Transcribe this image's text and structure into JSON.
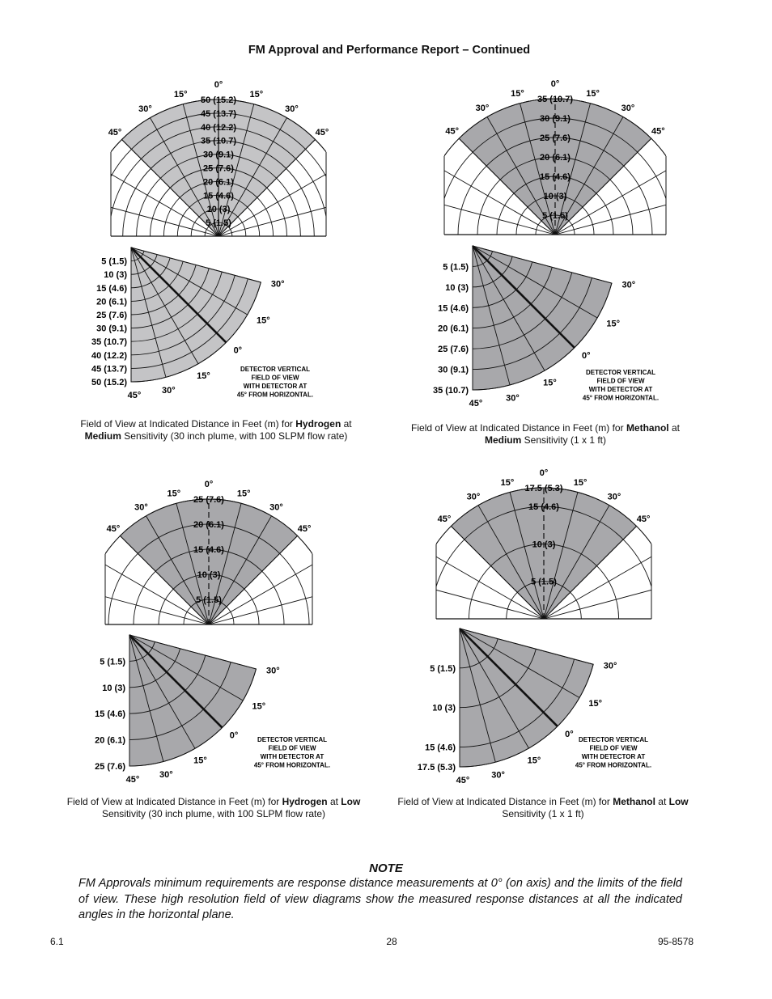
{
  "header": {
    "title": "FM Approval and Performance Report – Continued"
  },
  "diagrams": [
    {
      "id": "hydrogen-medium",
      "values": [
        5,
        10,
        15,
        20,
        25,
        30,
        35,
        40,
        45,
        50
      ],
      "distance_labels": [
        "5 (1.5)",
        "10 (3)",
        "15 (4.6)",
        "20 (6.1)",
        "25 (7.6)",
        "30 (9.1)",
        "35 (10.7)",
        "40 (12.2)",
        "45 (13.7)",
        "50 (15.2)"
      ],
      "top_angle_labels": [
        "45°",
        "30°",
        "15°",
        "0°",
        "15°",
        "30°",
        "45°"
      ],
      "side_angle_labels": [
        "30°",
        "15°",
        "0°",
        "15°",
        "30°",
        "45°"
      ],
      "side_note": [
        "DETECTOR VERTICAL",
        "FIELD OF VIEW",
        "WITH DETECTOR AT",
        "45° FROM HORIZONTAL."
      ],
      "caption": [
        {
          "text": "Field of View at Indicated Distance in Feet (m) for ",
          "bold": false
        },
        {
          "text": "Hydrogen",
          "bold": true
        },
        {
          "text": " at ",
          "bold": false
        },
        {
          "text": "Medium",
          "bold": true
        },
        {
          "text": " Sensitivity (30 inch plume, with 100 SLPM flow rate)",
          "bold": false
        }
      ],
      "shade_color": "#c4c4c6"
    },
    {
      "id": "methanol-medium",
      "values": [
        5,
        10,
        15,
        20,
        25,
        30,
        35
      ],
      "distance_labels": [
        "5 (1.5)",
        "10 (3)",
        "15 (4.6)",
        "20 (6.1)",
        "25 (7.6)",
        "30 (9.1)",
        "35 (10.7)"
      ],
      "top_angle_labels": [
        "45°",
        "30°",
        "15°",
        "0°",
        "15°",
        "30°",
        "45°"
      ],
      "side_angle_labels": [
        "30°",
        "15°",
        "0°",
        "15°",
        "30°",
        "45°"
      ],
      "side_note": [
        "DETECTOR VERTICAL",
        "FIELD OF VIEW",
        "WITH DETECTOR AT",
        "45° FROM HORIZONTAL."
      ],
      "caption": [
        {
          "text": "Field of View at Indicated Distance in Feet (m) for ",
          "bold": false
        },
        {
          "text": "Methanol",
          "bold": true
        },
        {
          "text": " at ",
          "bold": false
        },
        {
          "text": "Medium",
          "bold": true
        },
        {
          "text": " Sensitivity (1 x 1 ft)",
          "bold": false
        }
      ],
      "shade_color": "#a8a8ab"
    },
    {
      "id": "hydrogen-low",
      "values": [
        5,
        10,
        15,
        20,
        25
      ],
      "distance_labels": [
        "5 (1.5)",
        "10 (3)",
        "15 (4.6)",
        "20 (6.1)",
        "25 (7.6)"
      ],
      "top_angle_labels": [
        "45°",
        "30°",
        "15°",
        "0°",
        "15°",
        "30°",
        "45°"
      ],
      "side_angle_labels": [
        "30°",
        "15°",
        "0°",
        "15°",
        "30°",
        "45°"
      ],
      "side_note": [
        "DETECTOR VERTICAL",
        "FIELD OF VIEW",
        "WITH DETECTOR AT",
        "45° FROM HORIZONTAL."
      ],
      "caption": [
        {
          "text": "Field of View at Indicated Distance in Feet (m) for ",
          "bold": false
        },
        {
          "text": "Hydrogen",
          "bold": true
        },
        {
          "text": " at ",
          "bold": false
        },
        {
          "text": "Low",
          "bold": true
        },
        {
          "text": " Sensitivity (30 inch plume, with 100 SLPM flow rate)",
          "bold": false
        }
      ],
      "shade_color": "#a8a8ab"
    },
    {
      "id": "methanol-low",
      "values": [
        5,
        10,
        15,
        17.5
      ],
      "distance_labels": [
        "5 (1.5)",
        "10 (3)",
        "15 (4.6)",
        "17.5 (5.3)"
      ],
      "top_angle_labels": [
        "45°",
        "30°",
        "15°",
        "0°",
        "15°",
        "30°",
        "45°"
      ],
      "side_angle_labels": [
        "30°",
        "15°",
        "0°",
        "15°",
        "30°",
        "45°"
      ],
      "side_note": [
        "DETECTOR VERTICAL",
        "FIELD OF VIEW",
        "WITH DETECTOR AT",
        "45° FROM HORIZONTAL."
      ],
      "caption": [
        {
          "text": "Field of View at Indicated Distance in Feet (m) for ",
          "bold": false
        },
        {
          "text": "Methanol",
          "bold": true
        },
        {
          "text": " at ",
          "bold": false
        },
        {
          "text": "Low",
          "bold": true
        },
        {
          "text": " Sensitivity (1 x 1 ft)",
          "bold": false
        }
      ],
      "shade_color": "#a8a8ab"
    }
  ],
  "note": {
    "title": "NOTE",
    "body": "FM Approvals minimum requirements are response distance measurements at 0° (on axis) and the limits of the field of view. These high resolution field of view diagrams show the measured response distances at all the indicated angles in the horizontal plane."
  },
  "footer": {
    "left": "6.1",
    "center": "28",
    "right": "95-8578"
  }
}
